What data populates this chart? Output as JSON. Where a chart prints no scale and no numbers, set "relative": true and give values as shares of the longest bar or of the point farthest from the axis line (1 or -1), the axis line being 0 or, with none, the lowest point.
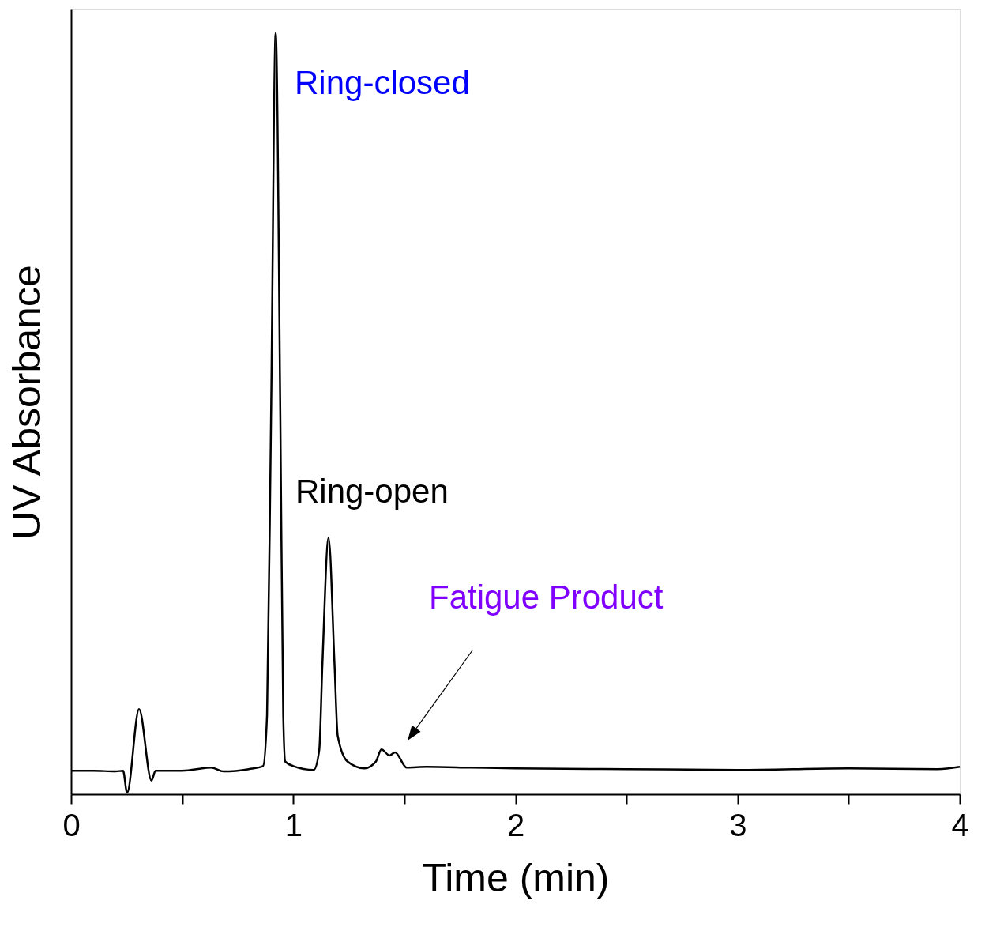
{
  "chart_data": {
    "type": "line",
    "relative": true,
    "xlabel": "Time (min)",
    "ylabel": "UV Absorbance",
    "xlim": [
      0,
      4
    ],
    "xticks": [
      0,
      {
        "value": 0.5,
        "label": null
      },
      1,
      {
        "value": 1.5,
        "label": null
      },
      2,
      {
        "value": 2.5,
        "label": null
      },
      3,
      {
        "value": 3.5,
        "label": null
      },
      4
    ],
    "grid": false,
    "legend": false,
    "marker": "none",
    "line_style": "solid",
    "series": [
      {
        "color": "#000000",
        "x": [
          0,
          0.1,
          0.2,
          0.234,
          0.252,
          0.306,
          0.362,
          0.38,
          0.5,
          0.63,
          0.686,
          0.8,
          0.864,
          0.882,
          0.9,
          0.921,
          0.942,
          0.955,
          0.964,
          1.0,
          1.092,
          1.117,
          1.131,
          1.159,
          1.186,
          1.2,
          1.244,
          1.32,
          1.372,
          1.397,
          1.433,
          1.458,
          1.511,
          1.6,
          1.8,
          2.0,
          2.5,
          3.0,
          3.5,
          3.9,
          4.0
        ],
        "values": [
          0.031,
          0.031,
          0.03,
          0.031,
          0.002,
          0.112,
          0.018,
          0.031,
          0.031,
          0.035,
          0.03,
          0.033,
          0.037,
          0.104,
          0.493,
          1.0,
          0.493,
          0.104,
          0.043,
          0.037,
          0.032,
          0.058,
          0.169,
          0.337,
          0.169,
          0.077,
          0.043,
          0.034,
          0.043,
          0.059,
          0.051,
          0.055,
          0.035,
          0.036,
          0.035,
          0.034,
          0.033,
          0.032,
          0.034,
          0.033,
          0.036
        ]
      }
    ],
    "annotations": [
      {
        "text": "Ring-closed",
        "x": 0.921,
        "y": 1.0
      },
      {
        "text": "Ring-open",
        "x": 1.159,
        "y": 0.337
      },
      "Fatigue Product"
    ]
  }
}
